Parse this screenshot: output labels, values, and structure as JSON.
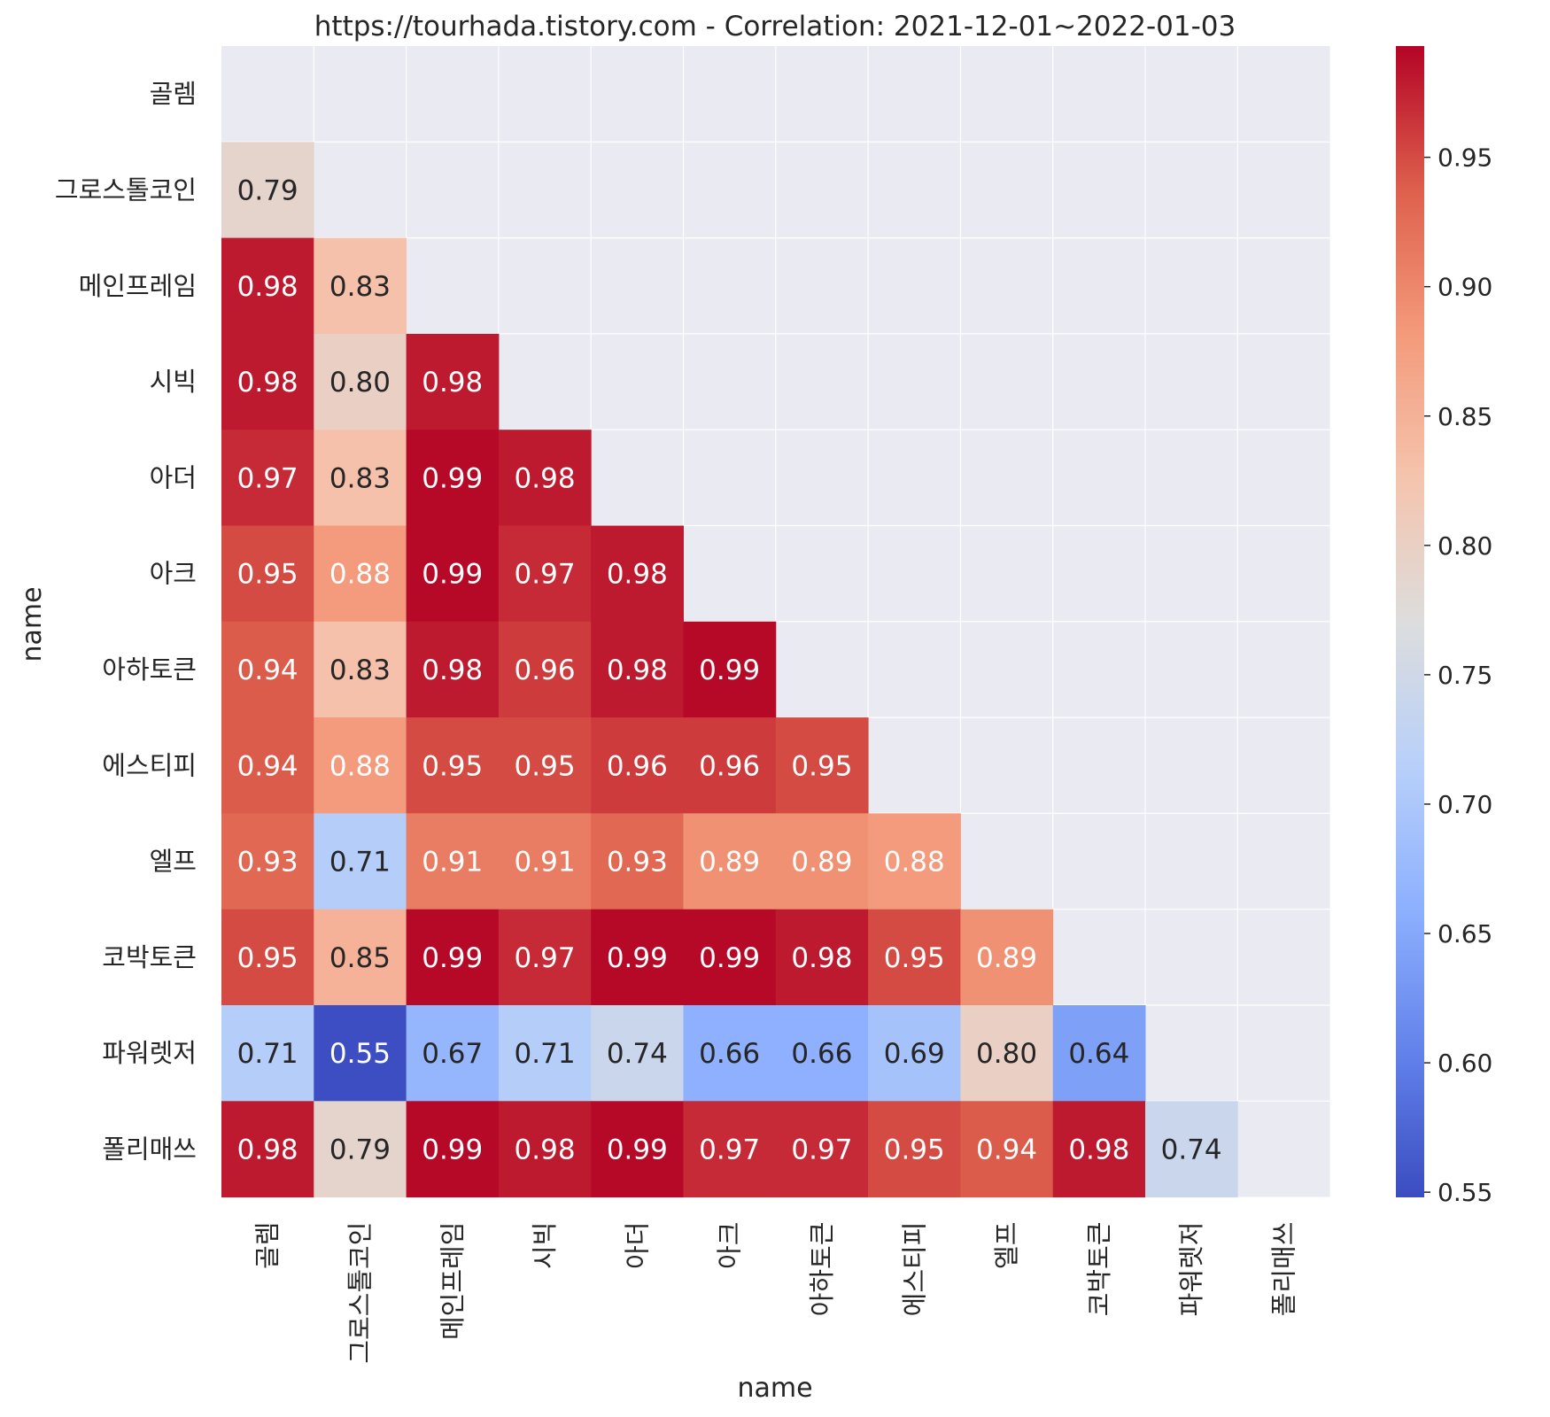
{
  "chart_data": {
    "type": "heatmap",
    "title": "https://tourhada.tistory.com - Correlation: 2021-12-01~2022-01-03",
    "xlabel": "name",
    "ylabel": "name",
    "labels": [
      "골렘",
      "그로스톨코인",
      "메인프레임",
      "시빅",
      "아더",
      "아크",
      "아하토큰",
      "에스티피",
      "엘프",
      "코박토큰",
      "파워렛저",
      "폴리매쓰"
    ],
    "mask": "upper-triangle-including-diagonal",
    "matrix": [
      [
        null,
        null,
        null,
        null,
        null,
        null,
        null,
        null,
        null,
        null,
        null,
        null
      ],
      [
        0.79,
        null,
        null,
        null,
        null,
        null,
        null,
        null,
        null,
        null,
        null,
        null
      ],
      [
        0.98,
        0.83,
        null,
        null,
        null,
        null,
        null,
        null,
        null,
        null,
        null,
        null
      ],
      [
        0.98,
        0.8,
        0.98,
        null,
        null,
        null,
        null,
        null,
        null,
        null,
        null,
        null
      ],
      [
        0.97,
        0.83,
        0.99,
        0.98,
        null,
        null,
        null,
        null,
        null,
        null,
        null,
        null
      ],
      [
        0.95,
        0.88,
        0.99,
        0.97,
        0.98,
        null,
        null,
        null,
        null,
        null,
        null,
        null
      ],
      [
        0.94,
        0.83,
        0.98,
        0.96,
        0.98,
        0.99,
        null,
        null,
        null,
        null,
        null,
        null
      ],
      [
        0.94,
        0.88,
        0.95,
        0.95,
        0.96,
        0.96,
        0.95,
        null,
        null,
        null,
        null,
        null
      ],
      [
        0.93,
        0.71,
        0.91,
        0.91,
        0.93,
        0.89,
        0.89,
        0.88,
        null,
        null,
        null,
        null
      ],
      [
        0.95,
        0.85,
        0.99,
        0.97,
        0.99,
        0.99,
        0.98,
        0.95,
        0.89,
        null,
        null,
        null
      ],
      [
        0.71,
        0.55,
        0.67,
        0.71,
        0.74,
        0.66,
        0.66,
        0.69,
        0.8,
        0.64,
        null,
        null
      ],
      [
        0.98,
        0.79,
        0.99,
        0.98,
        0.99,
        0.97,
        0.97,
        0.95,
        0.94,
        0.98,
        0.74,
        null
      ]
    ],
    "cell_labels": [
      [
        null,
        null,
        null,
        null,
        null,
        null,
        null,
        null,
        null,
        null,
        null,
        null
      ],
      [
        "0.79",
        null,
        null,
        null,
        null,
        null,
        null,
        null,
        null,
        null,
        null,
        null
      ],
      [
        "0.98",
        "0.83",
        null,
        null,
        null,
        null,
        null,
        null,
        null,
        null,
        null,
        null
      ],
      [
        "0.98",
        "0.80",
        "0.98",
        null,
        null,
        null,
        null,
        null,
        null,
        null,
        null,
        null
      ],
      [
        "0.97",
        "0.83",
        "0.99",
        "0.98",
        null,
        null,
        null,
        null,
        null,
        null,
        null,
        null
      ],
      [
        "0.95",
        "0.88",
        "0.99",
        "0.97",
        "0.98",
        null,
        null,
        null,
        null,
        null,
        null,
        null
      ],
      [
        "0.94",
        "0.83",
        "0.98",
        "0.96",
        "0.98",
        "0.99",
        null,
        null,
        null,
        null,
        null,
        null
      ],
      [
        "0.94",
        "0.88",
        "0.95",
        "0.95",
        "0.96",
        "0.96",
        "0.95",
        null,
        null,
        null,
        null,
        null
      ],
      [
        "0.93",
        "0.71",
        "0.91",
        "0.91",
        "0.93",
        "0.89",
        "0.89",
        "0.88",
        null,
        null,
        null,
        null
      ],
      [
        "0.95",
        "0.85",
        "0.99",
        "0.97",
        "0.99",
        "0.99",
        "0.98",
        "0.95",
        "0.89",
        null,
        null,
        null
      ],
      [
        "0.71",
        "0.55",
        "0.67",
        "0.71",
        "0.74",
        "0.66",
        "0.66",
        "0.69",
        "0.80",
        "0.64",
        null,
        null
      ],
      [
        "0.98",
        "0.79",
        "0.99",
        "0.98",
        "0.99",
        "0.97",
        "0.97",
        "0.95",
        "0.94",
        "0.98",
        "0.74",
        null
      ]
    ],
    "colormap": "coolwarm",
    "colorbar": {
      "vmin": 0.548,
      "vmax": 0.993,
      "ticks": [
        0.55,
        0.6,
        0.65,
        0.7,
        0.75,
        0.8,
        0.85,
        0.9,
        0.95
      ],
      "tick_labels": [
        "0.55",
        "0.60",
        "0.65",
        "0.70",
        "0.75",
        "0.80",
        "0.85",
        "0.90",
        "0.95"
      ]
    },
    "grid": true
  },
  "colors": {
    "background": "#ffffff",
    "plot_background": "#eaeaf2",
    "grid": "#ffffff",
    "text": "#262626",
    "cell_text_light": "#ffffff",
    "cell_text_dark": "#262626"
  }
}
